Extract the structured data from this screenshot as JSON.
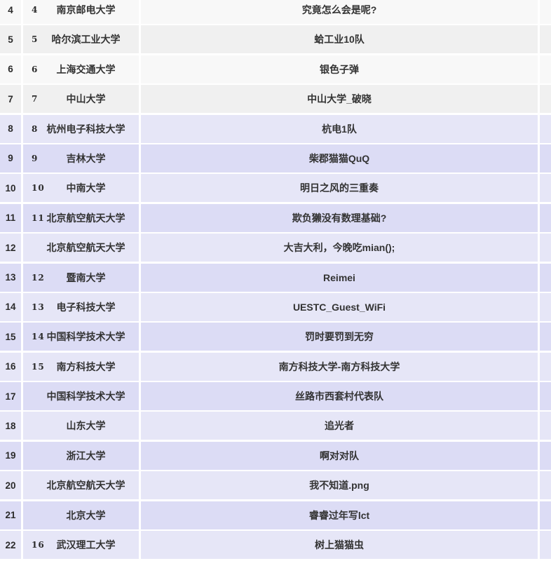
{
  "table": {
    "colors": {
      "gray_light": "#f8f8f8",
      "gray_dark": "#f0f0f0",
      "purple_light": "#e6e6f7",
      "purple_dark": "#dcdcf5",
      "text": "#333333",
      "gap": "#ffffff"
    },
    "columns": [
      "rank",
      "school_rank",
      "school",
      "team"
    ],
    "rows": [
      {
        "rank": "4",
        "school_rank": "4",
        "school": "南京邮电大学",
        "team": "究竟怎么会是呢?",
        "tier": "gray"
      },
      {
        "rank": "5",
        "school_rank": "5",
        "school": "哈尔滨工业大学",
        "team": "蛤工业10队",
        "tier": "gray"
      },
      {
        "rank": "6",
        "school_rank": "6",
        "school": "上海交通大学",
        "team": "银色子弹",
        "tier": "gray"
      },
      {
        "rank": "7",
        "school_rank": "7",
        "school": "中山大学",
        "team": "中山大学_破晓",
        "tier": "gray"
      },
      {
        "rank": "8",
        "school_rank": "8",
        "school": "杭州电子科技大学",
        "team": "杭电1队",
        "tier": "purple"
      },
      {
        "rank": "9",
        "school_rank": "9",
        "school": "吉林大学",
        "team": "柴郡猫猫QuQ",
        "tier": "purple"
      },
      {
        "rank": "10",
        "school_rank": "10",
        "school": "中南大学",
        "team": "明日之风的三重奏",
        "tier": "purple"
      },
      {
        "rank": "11",
        "school_rank": "11",
        "school": "北京航空航天大学",
        "team": "欺负獭没有数理基础?",
        "tier": "purple"
      },
      {
        "rank": "12",
        "school_rank": "",
        "school": "北京航空航天大学",
        "team": "大吉大利，今晚吃mian();",
        "tier": "purple"
      },
      {
        "rank": "13",
        "school_rank": "12",
        "school": "暨南大学",
        "team": "Reimei",
        "tier": "purple"
      },
      {
        "rank": "14",
        "school_rank": "13",
        "school": "电子科技大学",
        "team": "UESTC_Guest_WiFi",
        "tier": "purple"
      },
      {
        "rank": "15",
        "school_rank": "14",
        "school": "中国科学技术大学",
        "team": "罚时要罚到无穷",
        "tier": "purple"
      },
      {
        "rank": "16",
        "school_rank": "15",
        "school": "南方科技大学",
        "team": "南方科技大学-南方科技大学",
        "tier": "purple"
      },
      {
        "rank": "17",
        "school_rank": "",
        "school": "中国科学技术大学",
        "team": "丝路市西套村代表队",
        "tier": "purple"
      },
      {
        "rank": "18",
        "school_rank": "",
        "school": "山东大学",
        "team": "追光者",
        "tier": "purple"
      },
      {
        "rank": "19",
        "school_rank": "",
        "school": "浙江大学",
        "team": "啊对对队",
        "tier": "purple"
      },
      {
        "rank": "20",
        "school_rank": "",
        "school": "北京航空航天大学",
        "team": "我不知道.png",
        "tier": "purple"
      },
      {
        "rank": "21",
        "school_rank": "",
        "school": "北京大学",
        "team": "睿睿过年写lct",
        "tier": "purple"
      },
      {
        "rank": "22",
        "school_rank": "16",
        "school": "武汉理工大学",
        "team": "树上猫猫虫",
        "tier": "purple"
      }
    ]
  }
}
